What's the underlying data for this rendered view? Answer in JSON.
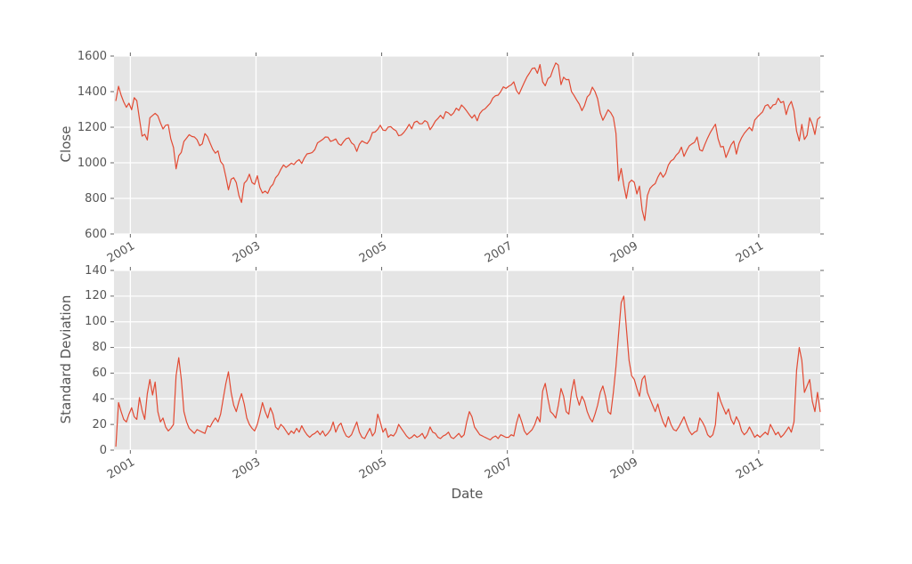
{
  "figure": {
    "background": "#ffffff",
    "plot_background": "#e5e5e5",
    "grid_color": "#ffffff",
    "tick_mark_color": "#666666",
    "text_color": "#555555",
    "line_color": "#e24a33"
  },
  "chart_data": [
    {
      "type": "line",
      "title": "",
      "xlabel": "",
      "ylabel": "Close",
      "grid": true,
      "legend": "none",
      "xlim": [
        2000.74,
        2011.98
      ],
      "ylim": [
        600,
        1600
      ],
      "x_ticks": [
        2001,
        2003,
        2005,
        2007,
        2009,
        2011
      ],
      "x_tick_labels": [
        "2001",
        "2003",
        "2005",
        "2007",
        "2009",
        "2011"
      ],
      "y_ticks": [
        600,
        800,
        1000,
        1200,
        1400,
        1600
      ],
      "y_tick_labels": [
        "600",
        "800",
        "1000",
        "1200",
        "1400",
        "1600"
      ],
      "series": [
        {
          "name": "Close",
          "color": "#e24a33",
          "x_start": 2000.77,
          "x_step": 0.0416667,
          "values": [
            1350,
            1430,
            1380,
            1342,
            1312,
            1335,
            1298,
            1366,
            1349,
            1246,
            1150,
            1160,
            1128,
            1253,
            1266,
            1278,
            1264,
            1225,
            1190,
            1211,
            1214,
            1134,
            1086,
            966,
            1040,
            1059,
            1120,
            1139,
            1158,
            1148,
            1145,
            1130,
            1096,
            1106,
            1164,
            1147,
            1111,
            1076,
            1054,
            1067,
            1007,
            989,
            921,
            848,
            908,
            916,
            889,
            815,
            777,
            885,
            901,
            936,
            889,
            879,
            927,
            861,
            830,
            841,
            828,
            863,
            879,
            916,
            933,
            963,
            988,
            974,
            985,
            998,
            990,
            1008,
            1018,
            996,
            1028,
            1050,
            1053,
            1058,
            1074,
            1112,
            1121,
            1131,
            1145,
            1144,
            1120,
            1126,
            1134,
            1107,
            1098,
            1120,
            1136,
            1140,
            1112,
            1101,
            1064,
            1104,
            1123,
            1114,
            1108,
            1130,
            1170,
            1173,
            1188,
            1211,
            1184,
            1181,
            1201,
            1203,
            1189,
            1180,
            1152,
            1156,
            1171,
            1191,
            1216,
            1191,
            1227,
            1234,
            1219,
            1220,
            1237,
            1228,
            1186,
            1207,
            1234,
            1249,
            1267,
            1248,
            1287,
            1280,
            1266,
            1280,
            1307,
            1294,
            1325,
            1310,
            1291,
            1270,
            1251,
            1270,
            1236,
            1276,
            1295,
            1303,
            1319,
            1335,
            1364,
            1377,
            1380,
            1400,
            1427,
            1418,
            1430,
            1438,
            1455,
            1406,
            1386,
            1420,
            1452,
            1482,
            1505,
            1530,
            1533,
            1503,
            1552,
            1455,
            1433,
            1473,
            1484,
            1526,
            1561,
            1549,
            1439,
            1481,
            1467,
            1468,
            1401,
            1378,
            1353,
            1330,
            1293,
            1322,
            1370,
            1385,
            1425,
            1400,
            1360,
            1280,
            1239,
            1267,
            1298,
            1282,
            1255,
            1166,
            899,
            968,
            873,
            800,
            888,
            903,
            890,
            825,
            869,
            735,
            676,
            816,
            856,
            872,
            883,
            919,
            946,
            919,
            940,
            987,
            1010,
            1020,
            1043,
            1057,
            1088,
            1036,
            1069,
            1095,
            1106,
            1115,
            1145,
            1073,
            1066,
            1104,
            1139,
            1169,
            1194,
            1217,
            1136,
            1089,
            1092,
            1030,
            1065,
            1101,
            1122,
            1049,
            1109,
            1141,
            1165,
            1183,
            1199,
            1180,
            1240,
            1257,
            1272,
            1286,
            1320,
            1327,
            1304,
            1325,
            1329,
            1363,
            1338,
            1345,
            1271,
            1320,
            1345,
            1292,
            1178,
            1123,
            1216,
            1131,
            1155,
            1253,
            1216,
            1159,
            1244,
            1257
          ]
        }
      ]
    },
    {
      "type": "line",
      "title": "",
      "xlabel": "Date",
      "ylabel": "Standard Deviation",
      "grid": true,
      "legend": "none",
      "xlim": [
        2000.74,
        2011.98
      ],
      "ylim": [
        0,
        140
      ],
      "x_ticks": [
        2001,
        2003,
        2005,
        2007,
        2009,
        2011
      ],
      "x_tick_labels": [
        "2001",
        "2003",
        "2005",
        "2007",
        "2009",
        "2011"
      ],
      "y_ticks": [
        0,
        20,
        40,
        60,
        80,
        100,
        120,
        140
      ],
      "y_tick_labels": [
        "0",
        "20",
        "40",
        "60",
        "80",
        "100",
        "120",
        "140"
      ],
      "series": [
        {
          "name": "Standard Deviation",
          "color": "#e24a33",
          "x_start": 2000.77,
          "x_step": 0.0416667,
          "values": [
            3,
            37,
            30,
            24,
            22,
            28,
            33,
            26,
            24,
            41,
            31,
            24,
            44,
            55,
            43,
            53,
            30,
            22,
            25,
            18,
            15,
            17,
            20,
            58,
            72,
            55,
            30,
            22,
            17,
            15,
            13,
            16,
            15,
            14,
            13,
            19,
            18,
            22,
            25,
            22,
            28,
            40,
            52,
            61,
            45,
            35,
            30,
            38,
            44,
            36,
            25,
            20,
            17,
            15,
            20,
            28,
            37,
            30,
            25,
            33,
            28,
            18,
            16,
            20,
            18,
            15,
            12,
            15,
            13,
            17,
            14,
            19,
            15,
            12,
            10,
            12,
            13,
            15,
            12,
            15,
            11,
            13,
            16,
            22,
            14,
            19,
            21,
            15,
            11,
            10,
            12,
            17,
            22,
            14,
            10,
            9,
            13,
            17,
            11,
            14,
            28,
            22,
            14,
            17,
            10,
            12,
            11,
            14,
            20,
            17,
            14,
            11,
            9,
            10,
            12,
            10,
            11,
            13,
            9,
            12,
            18,
            14,
            13,
            10,
            9,
            11,
            12,
            14,
            10,
            9,
            11,
            13,
            10,
            12,
            22,
            30,
            26,
            18,
            15,
            12,
            11,
            10,
            9,
            8,
            10,
            11,
            9,
            12,
            11,
            10,
            10,
            12,
            11,
            21,
            28,
            22,
            15,
            12,
            14,
            16,
            20,
            26,
            22,
            46,
            52,
            40,
            30,
            28,
            25,
            35,
            48,
            42,
            30,
            28,
            45,
            55,
            42,
            35,
            42,
            38,
            30,
            25,
            22,
            28,
            35,
            45,
            50,
            42,
            30,
            28,
            45,
            65,
            90,
            115,
            120,
            95,
            70,
            58,
            55,
            48,
            42,
            55,
            58,
            45,
            40,
            35,
            30,
            36,
            28,
            22,
            18,
            26,
            20,
            16,
            15,
            18,
            22,
            26,
            20,
            15,
            12,
            14,
            15,
            25,
            22,
            18,
            12,
            10,
            12,
            20,
            45,
            38,
            33,
            28,
            32,
            24,
            20,
            26,
            22,
            15,
            12,
            14,
            18,
            14,
            10,
            12,
            10,
            12,
            14,
            12,
            20,
            16,
            12,
            14,
            10,
            12,
            15,
            18,
            14,
            22,
            62,
            80,
            70,
            45,
            50,
            55,
            38,
            30,
            45,
            30
          ]
        }
      ]
    }
  ]
}
